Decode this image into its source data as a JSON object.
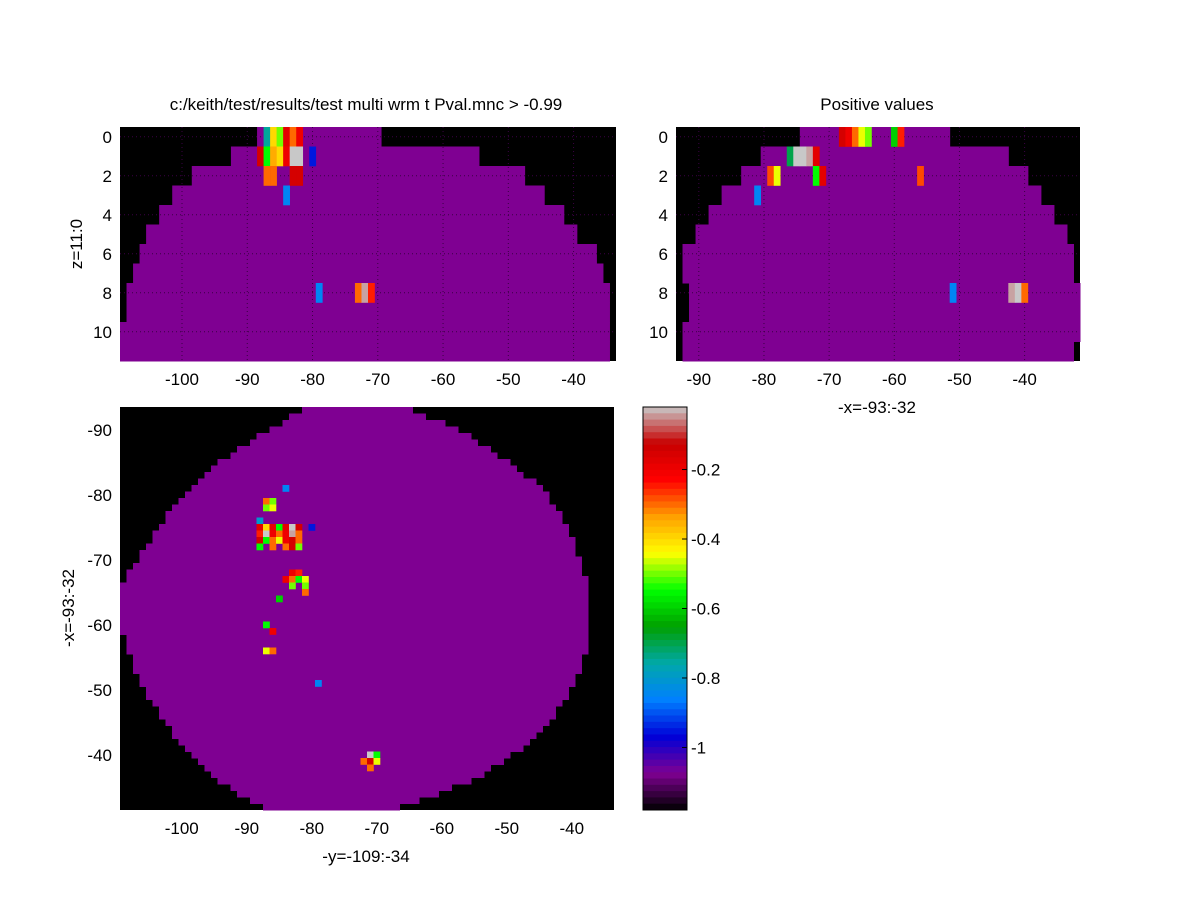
{
  "colors": {
    "background": "#ffffff",
    "mask": "#000000",
    "brain": "#7f0092",
    "grid": "#3a0044",
    "text": "#000000"
  },
  "chart_data": [
    {
      "type": "heatmap",
      "name": "top-left",
      "title": "c:/keith/test/results/test multi wrm t Pval.mnc > -0.99",
      "xlabel": "",
      "ylabel": "z=11:0",
      "xlim": [
        -109,
        -34
      ],
      "ylim": [
        0,
        11
      ],
      "y_reversed": true,
      "xticks": [
        -100,
        -90,
        -80,
        -70,
        -60,
        -50,
        -40
      ],
      "yticks": [
        0,
        2,
        4,
        6,
        8,
        10
      ],
      "grid": true,
      "mask_profile": {
        "rows": [
          0,
          1,
          2,
          3,
          4,
          5,
          6,
          7,
          8,
          9,
          10,
          11
        ],
        "x_start": [
          -88,
          -92,
          -98,
          -101,
          -103,
          -105,
          -106,
          -107,
          -108,
          -108,
          -109,
          -109
        ],
        "x_end": [
          -70,
          -55,
          -48,
          -45,
          -42,
          -40,
          -37,
          -36,
          -35,
          -35,
          -35,
          -35
        ]
      },
      "activations": [
        {
          "x": -87,
          "z": 0,
          "v": -0.75
        },
        {
          "x": -86,
          "z": 0,
          "v": -0.4
        },
        {
          "x": -85,
          "z": 0,
          "v": -0.5
        },
        {
          "x": -84,
          "z": 0,
          "v": -0.18
        },
        {
          "x": -83,
          "z": 0,
          "v": -0.3
        },
        {
          "x": -82,
          "z": 0,
          "v": -0.2
        },
        {
          "x": -88,
          "z": 1,
          "v": -0.15
        },
        {
          "x": -87,
          "z": 1,
          "v": -0.55
        },
        {
          "x": -86,
          "z": 1,
          "v": -0.35
        },
        {
          "x": -85,
          "z": 1,
          "v": -0.4
        },
        {
          "x": -84,
          "z": 1,
          "v": -0.2
        },
        {
          "x": -83,
          "z": 1,
          "v": -0.02
        },
        {
          "x": -82,
          "z": 1,
          "v": -0.02
        },
        {
          "x": -80,
          "z": 1,
          "v": -0.95
        },
        {
          "x": -87,
          "z": 2,
          "v": -0.3
        },
        {
          "x": -86,
          "z": 2,
          "v": -0.3
        },
        {
          "x": -83,
          "z": 2,
          "v": -0.15
        },
        {
          "x": -82,
          "z": 2,
          "v": -0.15
        },
        {
          "x": -84,
          "z": 3,
          "v": -0.85
        },
        {
          "x": -79,
          "z": 8,
          "v": -0.85
        },
        {
          "x": -73,
          "z": 8,
          "v": -0.3
        },
        {
          "x": -72,
          "z": 8,
          "v": -0.04
        },
        {
          "x": -71,
          "z": 8,
          "v": -0.25
        }
      ]
    },
    {
      "type": "heatmap",
      "name": "top-right",
      "title": "Positive values",
      "xlabel": "-x=-93:-32",
      "ylabel": "",
      "xlim": [
        -93,
        -32
      ],
      "ylim": [
        0,
        11
      ],
      "y_reversed": true,
      "xticks": [
        -90,
        -80,
        -70,
        -60,
        -50,
        -40
      ],
      "yticks": [
        0,
        2,
        4,
        6,
        8,
        10
      ],
      "grid": true,
      "mask_profile": {
        "rows": [
          0,
          1,
          2,
          3,
          4,
          5,
          6,
          7,
          8,
          9,
          10,
          11
        ],
        "x_start": [
          -74,
          -80,
          -83,
          -86,
          -88,
          -90,
          -92,
          -92,
          -91,
          -91,
          -92,
          -92
        ],
        "x_end": [
          -52,
          -43,
          -40,
          -38,
          -36,
          -34,
          -33,
          -33,
          -32,
          -32,
          -32,
          -33
        ]
      },
      "activations": [
        {
          "x": -68,
          "z": 0,
          "v": -0.15
        },
        {
          "x": -67,
          "z": 0,
          "v": -0.2
        },
        {
          "x": -66,
          "z": 0,
          "v": -0.3
        },
        {
          "x": -65,
          "z": 0,
          "v": -0.45
        },
        {
          "x": -64,
          "z": 0,
          "v": -0.5
        },
        {
          "x": -60,
          "z": 0,
          "v": -0.6
        },
        {
          "x": -59,
          "z": 0,
          "v": -0.25
        },
        {
          "x": -76,
          "z": 1,
          "v": -0.7
        },
        {
          "x": -75,
          "z": 1,
          "v": -0.02
        },
        {
          "x": -74,
          "z": 1,
          "v": -0.02
        },
        {
          "x": -73,
          "z": 1,
          "v": -0.04
        },
        {
          "x": -72,
          "z": 1,
          "v": -0.18
        },
        {
          "x": -79,
          "z": 2,
          "v": -0.28
        },
        {
          "x": -78,
          "z": 2,
          "v": -0.45
        },
        {
          "x": -72,
          "z": 2,
          "v": -0.55
        },
        {
          "x": -71,
          "z": 2,
          "v": -0.18
        },
        {
          "x": -56,
          "z": 2,
          "v": -0.28
        },
        {
          "x": -81,
          "z": 3,
          "v": -0.85
        },
        {
          "x": -51,
          "z": 8,
          "v": -0.85
        },
        {
          "x": -42,
          "z": 8,
          "v": -0.04
        },
        {
          "x": -41,
          "z": 8,
          "v": -0.02
        },
        {
          "x": -40,
          "z": 8,
          "v": -0.3
        }
      ]
    },
    {
      "type": "heatmap",
      "name": "bottom-left",
      "title": "",
      "xlabel": "-y=-109:-34",
      "ylabel": "-x=-93:-32",
      "xlim": [
        -109,
        -34
      ],
      "ylim": [
        -93,
        -32
      ],
      "y_reversed": true,
      "xticks": [
        -100,
        -90,
        -80,
        -70,
        -60,
        -50,
        -40
      ],
      "yticks": [
        -90,
        -80,
        -70,
        -60,
        -50,
        -40
      ],
      "grid": false,
      "mask_profile": {
        "rows": [
          -93,
          -90,
          -87,
          -84,
          -81,
          -78,
          -75,
          -72,
          -69,
          -66,
          -63,
          -60,
          -57,
          -54,
          -51,
          -48,
          -45,
          -42,
          -39,
          -36,
          -33,
          -32
        ],
        "x_start": [
          -81,
          -86,
          -91,
          -95,
          -98,
          -101,
          -103,
          -105,
          -107,
          -109,
          -109,
          -109,
          -108,
          -107,
          -106,
          -104,
          -102,
          -100,
          -97,
          -94,
          -89,
          -87
        ],
        "x_end": [
          -65,
          -58,
          -53,
          -49,
          -45,
          -43,
          -41,
          -40,
          -39,
          -38,
          -38,
          -38,
          -38,
          -39,
          -40,
          -42,
          -44,
          -47,
          -51,
          -56,
          -64,
          -67
        ]
      },
      "activations": [
        {
          "x": -84,
          "y": -81,
          "v": -0.85
        },
        {
          "x": -87,
          "y": -79,
          "v": -0.3
        },
        {
          "x": -86,
          "y": -79,
          "v": -0.5
        },
        {
          "x": -87,
          "y": -78,
          "v": -0.5
        },
        {
          "x": -86,
          "y": -78,
          "v": -0.45
        },
        {
          "x": -88,
          "y": -76,
          "v": -0.8
        },
        {
          "x": -88,
          "y": -75,
          "v": -0.18
        },
        {
          "x": -87,
          "y": -75,
          "v": -0.4
        },
        {
          "x": -86,
          "y": -75,
          "v": -0.18
        },
        {
          "x": -85,
          "y": -75,
          "v": -0.55
        },
        {
          "x": -84,
          "y": -75,
          "v": -0.18
        },
        {
          "x": -83,
          "y": -75,
          "v": -0.02
        },
        {
          "x": -82,
          "y": -75,
          "v": -0.15
        },
        {
          "x": -80,
          "y": -75,
          "v": -0.95
        },
        {
          "x": -88,
          "y": -74,
          "v": -0.25
        },
        {
          "x": -87,
          "y": -74,
          "v": -0.02
        },
        {
          "x": -86,
          "y": -74,
          "v": -0.2
        },
        {
          "x": -85,
          "y": -74,
          "v": -0.3
        },
        {
          "x": -84,
          "y": -74,
          "v": -0.2
        },
        {
          "x": -83,
          "y": -74,
          "v": -0.04
        },
        {
          "x": -82,
          "y": -74,
          "v": -0.3
        },
        {
          "x": -88,
          "y": -73,
          "v": -0.15
        },
        {
          "x": -87,
          "y": -73,
          "v": -0.55
        },
        {
          "x": -86,
          "y": -73,
          "v": -0.3
        },
        {
          "x": -85,
          "y": -73,
          "v": -0.45
        },
        {
          "x": -84,
          "y": -73,
          "v": -0.2
        },
        {
          "x": -83,
          "y": -73,
          "v": -0.15
        },
        {
          "x": -82,
          "y": -73,
          "v": -0.3
        },
        {
          "x": -88,
          "y": -72,
          "v": -0.55
        },
        {
          "x": -86,
          "y": -72,
          "v": -0.3
        },
        {
          "x": -84,
          "y": -72,
          "v": -0.3
        },
        {
          "x": -83,
          "y": -72,
          "v": -0.15
        },
        {
          "x": -82,
          "y": -72,
          "v": -0.5
        },
        {
          "x": -83,
          "y": -68,
          "v": -0.2
        },
        {
          "x": -82,
          "y": -68,
          "v": -0.25
        },
        {
          "x": -84,
          "y": -67,
          "v": -0.2
        },
        {
          "x": -83,
          "y": -67,
          "v": -0.3
        },
        {
          "x": -82,
          "y": -67,
          "v": -0.55
        },
        {
          "x": -81,
          "y": -67,
          "v": -0.45
        },
        {
          "x": -83,
          "y": -66,
          "v": -0.5
        },
        {
          "x": -81,
          "y": -66,
          "v": -0.5
        },
        {
          "x": -81,
          "y": -65,
          "v": -0.3
        },
        {
          "x": -85,
          "y": -64,
          "v": -0.6
        },
        {
          "x": -87,
          "y": -60,
          "v": -0.55
        },
        {
          "x": -86,
          "y": -59,
          "v": -0.2
        },
        {
          "x": -87,
          "y": -56,
          "v": -0.45
        },
        {
          "x": -86,
          "y": -56,
          "v": -0.3
        },
        {
          "x": -79,
          "y": -51,
          "v": -0.85
        },
        {
          "x": -71,
          "y": -40,
          "v": -0.02
        },
        {
          "x": -70,
          "y": -40,
          "v": -0.55
        },
        {
          "x": -72,
          "y": -39,
          "v": -0.3
        },
        {
          "x": -71,
          "y": -39,
          "v": -0.15
        },
        {
          "x": -70,
          "y": -39,
          "v": -0.45
        },
        {
          "x": -71,
          "y": -38,
          "v": -0.3
        }
      ]
    },
    {
      "type": "colorbar",
      "name": "colorbar",
      "range": [
        -1.18,
        -0.02
      ],
      "ticks": [
        -0.2,
        -0.4,
        -0.6,
        -0.8,
        -1
      ],
      "tick_labels": [
        "-0.2",
        "-0.4",
        "-0.6",
        "-0.8",
        "-1"
      ],
      "colormap": [
        "#000000",
        "#7f0092",
        "#0000d8",
        "#0080ff",
        "#00a8a8",
        "#00a000",
        "#00ff00",
        "#ffff00",
        "#ffa000",
        "#ff0000",
        "#c80000",
        "#c8c8c8"
      ]
    }
  ]
}
